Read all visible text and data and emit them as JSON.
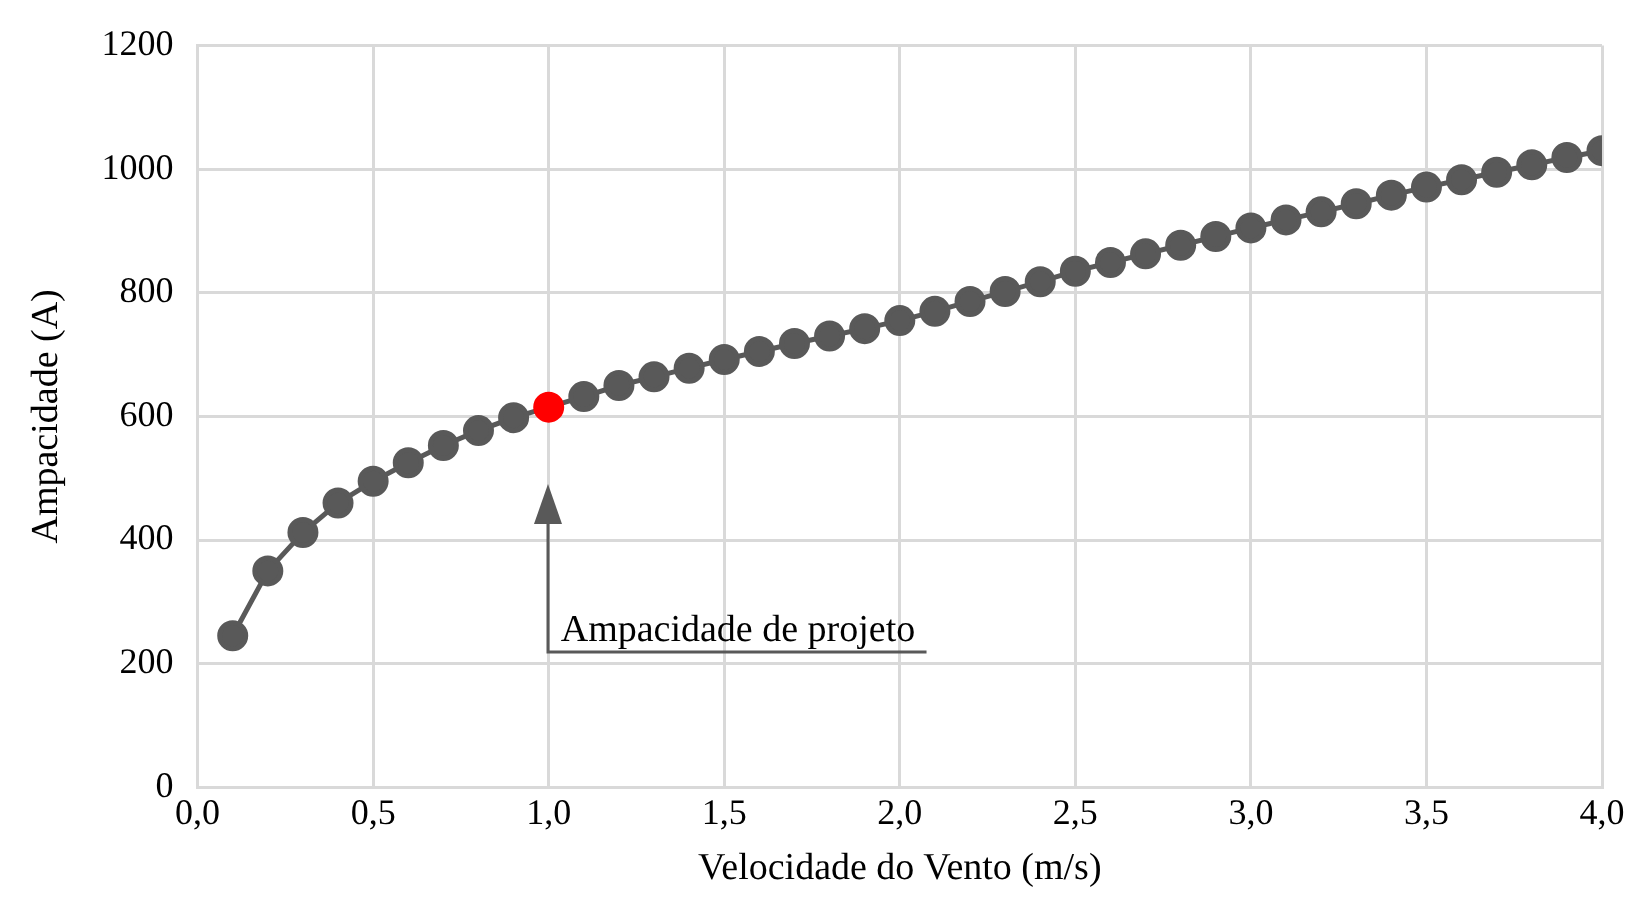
{
  "chart_data": {
    "type": "line",
    "xlabel": "Velocidade do Vento (m/s)",
    "ylabel": "Ampacidade (A)",
    "x": [
      0.1,
      0.2,
      0.3,
      0.4,
      0.5,
      0.6,
      0.7,
      0.8,
      0.9,
      1.0,
      1.1,
      1.2,
      1.3,
      1.4,
      1.5,
      1.6,
      1.7,
      1.8,
      1.9,
      2.0,
      2.1,
      2.2,
      2.3,
      2.4,
      2.5,
      2.6,
      2.7,
      2.8,
      2.9,
      3.0,
      3.1,
      3.2,
      3.3,
      3.4,
      3.5,
      3.6,
      3.7,
      3.8,
      3.9,
      4.0
    ],
    "series": [
      {
        "color": "#595959",
        "colors": [
          "#595959",
          "#595959",
          "#595959",
          "#595959",
          "#595959",
          "#595959",
          "#595959",
          "#595959",
          "#595959",
          "#ff0000",
          "#595959",
          "#595959",
          "#595959",
          "#595959",
          "#595959",
          "#595959",
          "#595959",
          "#595959",
          "#595959",
          "#595959",
          "#595959",
          "#595959",
          "#595959",
          "#595959",
          "#595959",
          "#595959",
          "#595959",
          "#595959",
          "#595959",
          "#595959",
          "#595959",
          "#595959",
          "#595959",
          "#595959",
          "#595959",
          "#595959",
          "#595959",
          "#595959",
          "#595959",
          "#595959"
        ],
        "values": [
          245,
          350,
          412,
          460,
          495,
          525,
          553,
          577,
          598,
          615,
          632,
          650,
          664,
          678,
          692,
          705,
          718,
          730,
          742,
          755,
          770,
          786,
          802,
          818,
          835,
          849,
          863,
          877,
          891,
          905,
          918,
          931,
          944,
          958,
          971,
          983,
          995,
          1007,
          1019,
          1030
        ]
      }
    ],
    "xlim": [
      0,
      4
    ],
    "xticks": [
      {
        "value": 0,
        "label": "0,0"
      },
      {
        "value": 0.5,
        "label": "0,5"
      },
      {
        "value": 1,
        "label": "1,0"
      },
      {
        "value": 1.5,
        "label": "1,5"
      },
      {
        "value": 2,
        "label": "2,0"
      },
      {
        "value": 2.5,
        "label": "2,5"
      },
      {
        "value": 3,
        "label": "3,0"
      },
      {
        "value": 3.5,
        "label": "3,5"
      },
      {
        "value": 4,
        "label": "4,0"
      }
    ],
    "ylim": [
      0,
      1200
    ],
    "yticks": [
      0,
      200,
      400,
      600,
      800,
      1000,
      1200
    ],
    "grid": true,
    "legend": false,
    "marker": "circle",
    "line_style": "solid",
    "annotations": [
      "Ampacidade de projeto"
    ]
  }
}
